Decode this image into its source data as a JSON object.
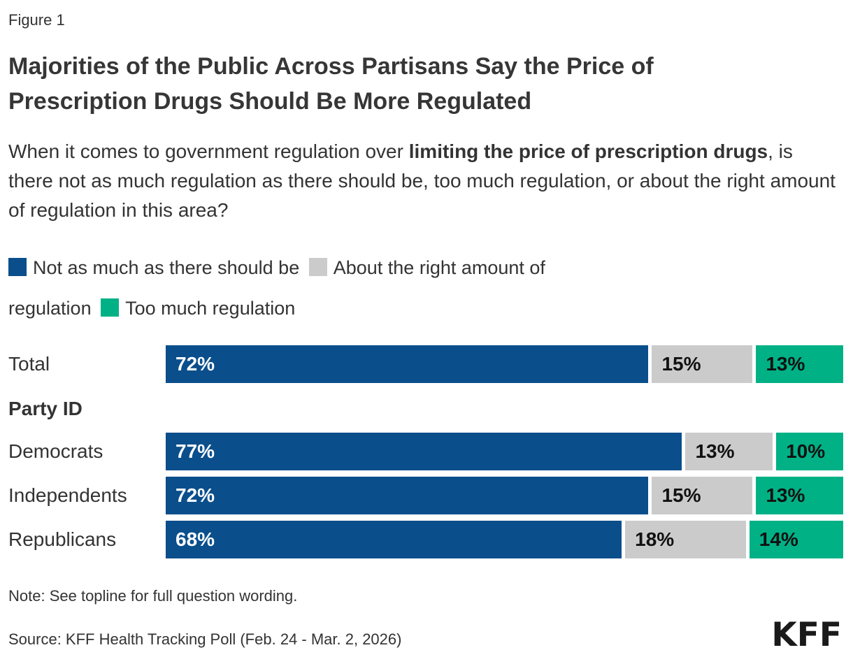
{
  "figure_label": "Figure 1",
  "title": "Majorities of the Public Across Partisans Say the Price of Prescription Drugs Should Be More Regulated",
  "question": {
    "pre": "When it comes to government regulation over ",
    "bold": "limiting the price of prescription drugs",
    "post": ", is there not as much regulation as there should be, too much regulation, or about the right amount of regulation in this area?"
  },
  "legend": [
    {
      "label": "Not as much as there should be",
      "color": "#0A4E8C"
    },
    {
      "label": "About the right amount of regulation",
      "color": "#CBCBCB"
    },
    {
      "label": "Too much regulation",
      "color": "#00B186"
    }
  ],
  "section_label": "Party ID",
  "chart_data": {
    "type": "bar",
    "orientation": "horizontal",
    "stacked": true,
    "value_unit": "%",
    "xlim": [
      0,
      100
    ],
    "categories": [
      "Total",
      "Democrats",
      "Independents",
      "Republicans"
    ],
    "category_group": {
      "label": "Party ID",
      "members": [
        "Democrats",
        "Independents",
        "Republicans"
      ]
    },
    "series": [
      {
        "name": "Not as much as there should be",
        "color": "#0A4E8C",
        "values": [
          72,
          77,
          72,
          68
        ]
      },
      {
        "name": "About the right amount of regulation",
        "color": "#CBCBCB",
        "values": [
          15,
          13,
          15,
          18
        ]
      },
      {
        "name": "Too much regulation",
        "color": "#00B186",
        "values": [
          13,
          10,
          13,
          14
        ]
      }
    ],
    "data_labels": "inside-start",
    "grid": false,
    "legend_position": "top"
  },
  "note": "Note: See topline for full question wording.",
  "source": "Source: KFF Health Tracking Poll (Feb. 24 - Mar. 2, 2026)",
  "logo": "KFF",
  "colors": {
    "background": "#FFFFFF",
    "text": "#333333",
    "blue": "#0A4E8C",
    "gray": "#CBCBCB",
    "green": "#00B186"
  }
}
